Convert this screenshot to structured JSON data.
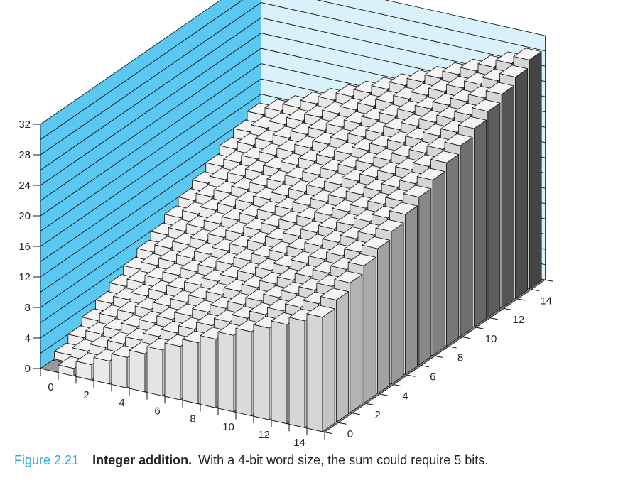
{
  "chart_data": {
    "type": "bar3d",
    "title": "",
    "xlabel": "",
    "ylabel": "",
    "zlabel": "",
    "x": [
      0,
      1,
      2,
      3,
      4,
      5,
      6,
      7,
      8,
      9,
      10,
      11,
      12,
      13,
      14,
      15
    ],
    "y": [
      0,
      1,
      2,
      3,
      4,
      5,
      6,
      7,
      8,
      9,
      10,
      11,
      12,
      13,
      14,
      15
    ],
    "z_formula": "z = x + y",
    "xticks": [
      "0",
      "2",
      "4",
      "6",
      "8",
      "10",
      "12",
      "14"
    ],
    "yticks": [
      "0",
      "2",
      "4",
      "6",
      "8",
      "10",
      "12",
      "14"
    ],
    "zticks": [
      "0",
      "4",
      "8",
      "12",
      "16",
      "20",
      "24",
      "28",
      "32"
    ],
    "zlim": [
      0,
      32
    ],
    "grid": true,
    "colors": {
      "wall_left": "#5bc8f2",
      "wall_back": "#d9f1fb",
      "floor": "#8a8a8a",
      "bar_top": "#f4f4f4"
    }
  },
  "caption": {
    "figure_label": "Figure 2.21",
    "title": "Integer addition.",
    "text": "With a 4-bit word size, the sum could require 5 bits."
  }
}
